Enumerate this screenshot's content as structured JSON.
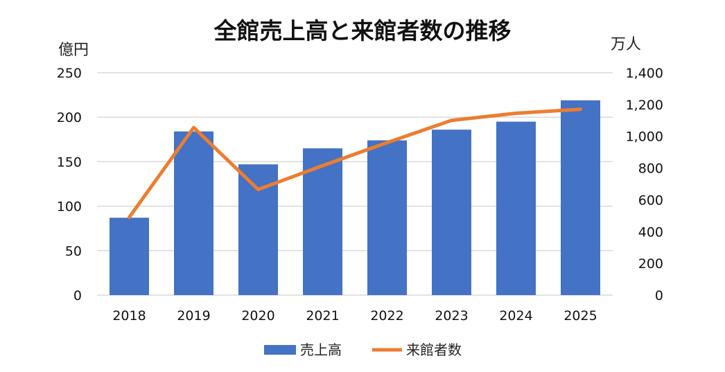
{
  "chart_data": {
    "type": "bar",
    "title": "全館売上高と来館者数の推移",
    "categories": [
      "2018",
      "2019",
      "2020",
      "2021",
      "2022",
      "2023",
      "2024",
      "2025"
    ],
    "series": [
      {
        "name": "売上高",
        "type": "bar",
        "axis": "left",
        "color": "#4472C4",
        "values": [
          87,
          184,
          147,
          165,
          174,
          186,
          195,
          219
        ]
      },
      {
        "name": "来館者数",
        "type": "line",
        "axis": "right",
        "color": "#ED7D31",
        "values": [
          490,
          1055,
          665,
          815,
          960,
          1100,
          1145,
          1170
        ]
      }
    ],
    "y_left": {
      "unit": "億円",
      "ylim": [
        0,
        250
      ],
      "ticks": [
        "0",
        "50",
        "100",
        "150",
        "200",
        "250"
      ]
    },
    "y_right": {
      "unit": "万人",
      "ylim": [
        0,
        1400
      ],
      "ticks": [
        "0",
        "200",
        "400",
        "600",
        "800",
        "1,000",
        "1,200",
        "1,400"
      ]
    },
    "grid": true,
    "legend": {
      "position": "bottom",
      "entries": [
        "売上高",
        "来館者数"
      ]
    }
  }
}
